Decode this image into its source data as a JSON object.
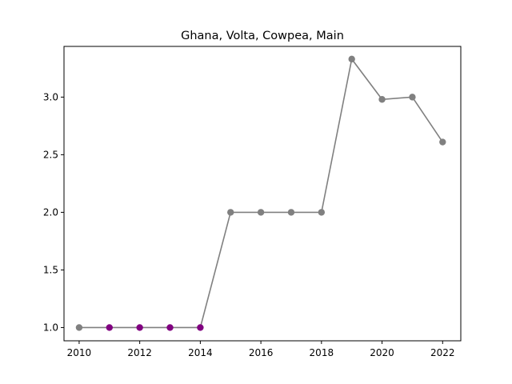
{
  "chart_data": {
    "type": "line",
    "title": "Ghana, Volta, Cowpea, Main",
    "xlabel": "",
    "ylabel": "",
    "xlim": [
      2009.5,
      2022.6
    ],
    "ylim": [
      0.885,
      3.44
    ],
    "xticks": [
      2010,
      2012,
      2014,
      2016,
      2018,
      2020,
      2022
    ],
    "yticks": [
      1.0,
      1.5,
      2.0,
      2.5,
      3.0
    ],
    "ytick_labels": [
      "1.0",
      "1.5",
      "2.0",
      "2.5",
      "3.0"
    ],
    "grid": false,
    "legend": "none",
    "line_color": "#808080",
    "series": [
      {
        "x": [
          2010,
          2011,
          2012,
          2013,
          2014,
          2015,
          2016,
          2017,
          2018,
          2019,
          2020,
          2021,
          2022
        ],
        "values": [
          1.0,
          1.0,
          1.0,
          1.0,
          1.0,
          2.0,
          2.0,
          2.0,
          2.0,
          3.33,
          2.98,
          3.0,
          2.61
        ],
        "marker_colors": [
          "#808080",
          "#800080",
          "#800080",
          "#800080",
          "#800080",
          "#808080",
          "#808080",
          "#808080",
          "#808080",
          "#808080",
          "#808080",
          "#808080",
          "#808080"
        ]
      }
    ]
  }
}
